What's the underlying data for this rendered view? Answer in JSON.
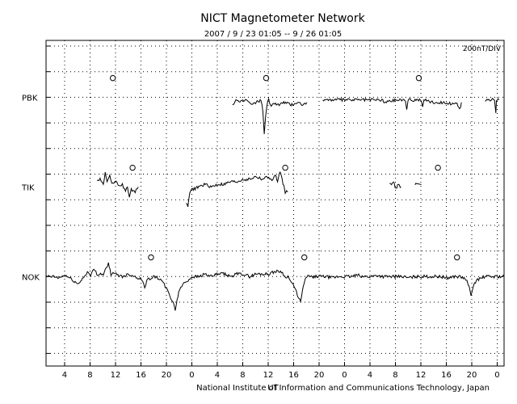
{
  "chart_data": {
    "type": "line",
    "title": "NICT Magnetometer Network",
    "subtitle": "2007 / 9 / 23   01:05 --  9 / 26   01:05",
    "scale_label": "200nT/DIV",
    "footer": "National Institute of Information and Communications Technology, Japan",
    "footer_mark": "UT",
    "grid": "dotted",
    "x_hours_range": [
      0,
      72
    ],
    "x_ticks": [
      {
        "h": 2.92,
        "label": "4"
      },
      {
        "h": 6.92,
        "label": "8"
      },
      {
        "h": 10.92,
        "label": "12"
      },
      {
        "h": 14.92,
        "label": "16"
      },
      {
        "h": 18.92,
        "label": "20"
      },
      {
        "h": 22.92,
        "label": "0"
      },
      {
        "h": 26.92,
        "label": "4"
      },
      {
        "h": 30.92,
        "label": "8"
      },
      {
        "h": 34.92,
        "label": "12"
      },
      {
        "h": 38.92,
        "label": "16"
      },
      {
        "h": 42.92,
        "label": "20"
      },
      {
        "h": 46.92,
        "label": "0"
      },
      {
        "h": 50.92,
        "label": "4"
      },
      {
        "h": 54.92,
        "label": "8"
      },
      {
        "h": 58.92,
        "label": "12"
      },
      {
        "h": 62.92,
        "label": "16"
      },
      {
        "h": 66.92,
        "label": "20"
      },
      {
        "h": 70.92,
        "label": "0"
      }
    ],
    "series": [
      {
        "name": "PBK",
        "base_div": 2,
        "noon_markers_h": [
          10.5,
          34.6,
          58.6
        ],
        "segments": [
          [
            [
              29.3,
              -0.3
            ],
            [
              29.8,
              -0.1
            ],
            [
              30.5,
              -0.2
            ],
            [
              31.5,
              -0.1
            ],
            [
              32.3,
              -0.3
            ],
            [
              33.1,
              -0.2
            ],
            [
              33.8,
              -0.1
            ],
            [
              34.1,
              -0.6
            ],
            [
              34.3,
              -1.4
            ],
            [
              34.5,
              -0.8
            ],
            [
              34.7,
              -0.3
            ],
            [
              35.0,
              -0.1
            ],
            [
              35.4,
              -0.4
            ],
            [
              35.8,
              -0.2
            ],
            [
              36.5,
              -0.3
            ],
            [
              37.5,
              -0.2
            ],
            [
              38.5,
              -0.3
            ],
            [
              39.5,
              -0.2
            ],
            [
              40.5,
              -0.3
            ],
            [
              41.0,
              -0.2
            ]
          ],
          [
            [
              43.5,
              -0.1
            ],
            [
              45.0,
              -0.1
            ],
            [
              47.0,
              -0.1
            ],
            [
              49.0,
              -0.1
            ],
            [
              51.0,
              -0.1
            ],
            [
              52.8,
              -0.1
            ],
            [
              53.2,
              -0.2
            ],
            [
              55.0,
              -0.1
            ],
            [
              56.5,
              -0.1
            ],
            [
              56.7,
              -0.5
            ],
            [
              56.9,
              -0.1
            ],
            [
              58.0,
              -0.1
            ],
            [
              59.0,
              -0.1
            ],
            [
              59.2,
              -0.4
            ],
            [
              59.4,
              -0.1
            ],
            [
              61.0,
              -0.2
            ],
            [
              63.0,
              -0.2
            ],
            [
              64.2,
              -0.3
            ],
            [
              64.6,
              -0.2
            ],
            [
              65.0,
              -0.5
            ],
            [
              65.3,
              -0.2
            ]
          ],
          [
            [
              69.0,
              -0.1
            ],
            [
              70.5,
              -0.1
            ],
            [
              70.7,
              -0.6
            ],
            [
              70.8,
              -0.1
            ],
            [
              71.2,
              -0.1
            ]
          ]
        ]
      },
      {
        "name": "TIK",
        "base_div": 5.5,
        "noon_markers_h": [
          13.6,
          37.6,
          61.6
        ],
        "segments": [
          [
            [
              8.0,
              0.2
            ],
            [
              8.5,
              0.3
            ],
            [
              9.0,
              0.1
            ],
            [
              9.3,
              0.6
            ],
            [
              9.6,
              0.2
            ],
            [
              10.0,
              0.4
            ],
            [
              10.5,
              0.1
            ],
            [
              11.0,
              0.2
            ],
            [
              11.5,
              0.0
            ],
            [
              12.0,
              0.1
            ],
            [
              12.5,
              -0.2
            ],
            [
              12.8,
              0.0
            ],
            [
              13.1,
              -0.4
            ],
            [
              13.4,
              -0.1
            ],
            [
              14.0,
              -0.2
            ],
            [
              14.5,
              0.0
            ]
          ],
          [
            [
              22.0,
              -0.6
            ],
            [
              22.3,
              -0.8
            ],
            [
              22.6,
              -0.2
            ],
            [
              23.0,
              -0.1
            ],
            [
              24.0,
              0.0
            ],
            [
              25.0,
              0.1
            ],
            [
              26.0,
              0.0
            ],
            [
              27.0,
              0.1
            ],
            [
              28.0,
              0.1
            ],
            [
              29.0,
              0.2
            ],
            [
              30.0,
              0.2
            ],
            [
              31.0,
              0.3
            ],
            [
              32.0,
              0.3
            ],
            [
              33.0,
              0.4
            ],
            [
              34.0,
              0.3
            ],
            [
              35.0,
              0.4
            ],
            [
              35.5,
              0.2
            ],
            [
              36.0,
              0.5
            ],
            [
              36.4,
              0.2
            ],
            [
              36.8,
              0.6
            ],
            [
              37.1,
              0.3
            ],
            [
              37.4,
              0.0
            ],
            [
              37.6,
              -0.3
            ],
            [
              37.8,
              -0.1
            ],
            [
              38.0,
              -0.2
            ]
          ],
          [
            [
              54.0,
              0.1
            ],
            [
              54.6,
              0.2
            ],
            [
              55.0,
              -0.1
            ],
            [
              55.4,
              0.1
            ],
            [
              55.8,
              0.0
            ]
          ],
          [
            [
              58.0,
              0.1
            ],
            [
              58.6,
              0.1
            ],
            [
              59.0,
              0.1
            ]
          ]
        ]
      },
      {
        "name": "NOK",
        "base_div": 9,
        "noon_markers_h": [
          16.5,
          40.6,
          64.6
        ],
        "segments": [
          [
            [
              0.0,
              0.0
            ],
            [
              1.0,
              0.0
            ],
            [
              2.0,
              -0.05
            ],
            [
              3.0,
              0.05
            ],
            [
              4.0,
              -0.1
            ],
            [
              5.0,
              -0.3
            ],
            [
              6.0,
              0.0
            ],
            [
              6.5,
              0.2
            ],
            [
              7.0,
              0.0
            ],
            [
              7.5,
              0.3
            ],
            [
              8.0,
              0.1
            ],
            [
              9.0,
              0.1
            ],
            [
              9.8,
              0.5
            ],
            [
              10.2,
              0.1
            ],
            [
              11.0,
              0.1
            ],
            [
              12.0,
              0.0
            ],
            [
              13.0,
              0.1
            ],
            [
              14.0,
              0.0
            ],
            [
              15.0,
              -0.1
            ],
            [
              15.5,
              -0.4
            ],
            [
              16.0,
              -0.1
            ],
            [
              17.0,
              0.0
            ],
            [
              18.0,
              -0.1
            ],
            [
              19.0,
              -0.5
            ],
            [
              19.5,
              -0.8
            ],
            [
              20.0,
              -1.0
            ],
            [
              20.3,
              -1.3
            ],
            [
              20.6,
              -0.9
            ],
            [
              21.0,
              -0.5
            ],
            [
              21.5,
              -0.3
            ],
            [
              22.0,
              -0.2
            ],
            [
              22.5,
              -0.1
            ],
            [
              23.0,
              0.0
            ],
            [
              24.0,
              0.0
            ],
            [
              25.0,
              0.1
            ],
            [
              26.0,
              0.0
            ],
            [
              27.0,
              0.1
            ],
            [
              28.0,
              0.1
            ],
            [
              29.0,
              0.0
            ],
            [
              30.0,
              0.1
            ],
            [
              31.0,
              0.1
            ],
            [
              32.0,
              0.0
            ],
            [
              33.0,
              0.1
            ],
            [
              34.0,
              0.1
            ],
            [
              35.0,
              0.1
            ],
            [
              36.0,
              0.2
            ],
            [
              37.0,
              0.2
            ],
            [
              37.5,
              0.0
            ],
            [
              38.0,
              0.0
            ],
            [
              38.5,
              -0.2
            ],
            [
              39.0,
              -0.4
            ],
            [
              39.5,
              -0.7
            ],
            [
              40.0,
              -1.0
            ],
            [
              40.3,
              -0.6
            ],
            [
              40.6,
              -0.2
            ],
            [
              41.0,
              0.0
            ],
            [
              42.0,
              0.0
            ],
            [
              43.0,
              0.0
            ],
            [
              44.0,
              0.0
            ],
            [
              45.0,
              -0.05
            ],
            [
              46.0,
              0.0
            ],
            [
              47.0,
              0.0
            ],
            [
              48.0,
              0.0
            ],
            [
              49.0,
              0.05
            ],
            [
              50.0,
              0.0
            ],
            [
              51.0,
              0.0
            ],
            [
              52.0,
              0.05
            ],
            [
              53.0,
              0.0
            ],
            [
              54.0,
              0.0
            ],
            [
              55.0,
              0.0
            ],
            [
              56.0,
              0.0
            ],
            [
              57.0,
              -0.05
            ],
            [
              58.0,
              0.0
            ],
            [
              59.0,
              0.0
            ],
            [
              60.0,
              0.0
            ],
            [
              61.0,
              0.0
            ],
            [
              62.0,
              0.0
            ],
            [
              63.0,
              -0.05
            ],
            [
              64.0,
              0.0
            ],
            [
              65.0,
              0.0
            ],
            [
              66.0,
              -0.1
            ],
            [
              66.5,
              -0.4
            ],
            [
              66.8,
              -0.8
            ],
            [
              67.1,
              -0.4
            ],
            [
              67.5,
              -0.2
            ],
            [
              68.0,
              -0.1
            ],
            [
              69.0,
              0.0
            ],
            [
              70.0,
              0.0
            ],
            [
              71.0,
              0.0
            ],
            [
              72.0,
              0.0
            ]
          ]
        ]
      }
    ]
  }
}
